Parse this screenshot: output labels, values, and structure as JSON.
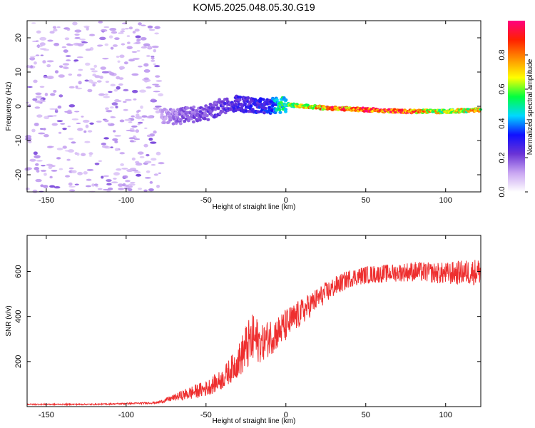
{
  "title": "KOM5.2025.048.05.30.G19",
  "chart_data": [
    {
      "type": "heatmap",
      "xlabel": "Height of straight line (km)",
      "ylabel": "Frequency (Hz)",
      "xlim": [
        -162,
        122
      ],
      "ylim": [
        -25,
        25
      ],
      "xticks": [
        -150,
        -100,
        -50,
        0,
        50,
        100
      ],
      "yticks": [
        -20,
        -10,
        0,
        10,
        20
      ],
      "colorbar": {
        "label": "Normalized spectral amplitude",
        "range": [
          0,
          1
        ],
        "ticks": [
          0.0,
          0.2,
          0.4,
          0.6,
          0.8
        ],
        "colormap": [
          "#ffffff",
          "#c9a6f2",
          "#6a33d6",
          "#1010ff",
          "#00d8ff",
          "#00ff40",
          "#ffff00",
          "#ff9000",
          "#ff2000",
          "#ff0080"
        ]
      },
      "ridge": [
        {
          "x": -78,
          "freq": -3,
          "amp": 0.1
        },
        {
          "x": -70,
          "freq": -3,
          "amp": 0.15
        },
        {
          "x": -60,
          "freq": -2.5,
          "amp": 0.18
        },
        {
          "x": -50,
          "freq": -2,
          "amp": 0.2
        },
        {
          "x": -40,
          "freq": 0,
          "amp": 0.22
        },
        {
          "x": -30,
          "freq": 1,
          "amp": 0.25
        },
        {
          "x": -20,
          "freq": 0,
          "amp": 0.28
        },
        {
          "x": -10,
          "freq": 0,
          "amp": 0.3
        },
        {
          "x": 0,
          "freq": 0.5,
          "amp": 0.55
        },
        {
          "x": 25,
          "freq": -0.5,
          "amp": 0.8
        },
        {
          "x": 50,
          "freq": -1,
          "amp": 0.85
        },
        {
          "x": 75,
          "freq": -1.5,
          "amp": 0.85
        },
        {
          "x": 100,
          "freq": -1.5,
          "amp": 0.6
        },
        {
          "x": 122,
          "freq": -1,
          "amp": 0.7
        }
      ],
      "noise_region_x": [
        -162,
        -78
      ],
      "noise_amp": 0.05
    },
    {
      "type": "line",
      "xlabel": "Height of straight line (km)",
      "ylabel": "SNR (v/v)",
      "xlim": [
        -162,
        122
      ],
      "ylim": [
        0,
        760
      ],
      "xticks": [
        -150,
        -100,
        -50,
        0,
        50,
        100
      ],
      "yticks": [
        200,
        400,
        600
      ],
      "series": [
        {
          "color": "#ee2f2f",
          "x": [
            -162,
            -120,
            -90,
            -80,
            -70,
            -60,
            -50,
            -40,
            -30,
            -25,
            -20,
            -15,
            -10,
            -5,
            0,
            10,
            20,
            30,
            40,
            50,
            60,
            70,
            80,
            90,
            100,
            110,
            122
          ],
          "y_mean": [
            10,
            10,
            15,
            18,
            40,
            60,
            80,
            120,
            200,
            260,
            300,
            280,
            310,
            330,
            360,
            420,
            480,
            530,
            570,
            585,
            590,
            595,
            600,
            595,
            590,
            595,
            600
          ],
          "y_spread": [
            6,
            6,
            8,
            10,
            30,
            60,
            70,
            90,
            140,
            220,
            240,
            160,
            170,
            150,
            150,
            120,
            100,
            90,
            80,
            80,
            80,
            80,
            90,
            90,
            100,
            110,
            120
          ]
        }
      ]
    }
  ]
}
